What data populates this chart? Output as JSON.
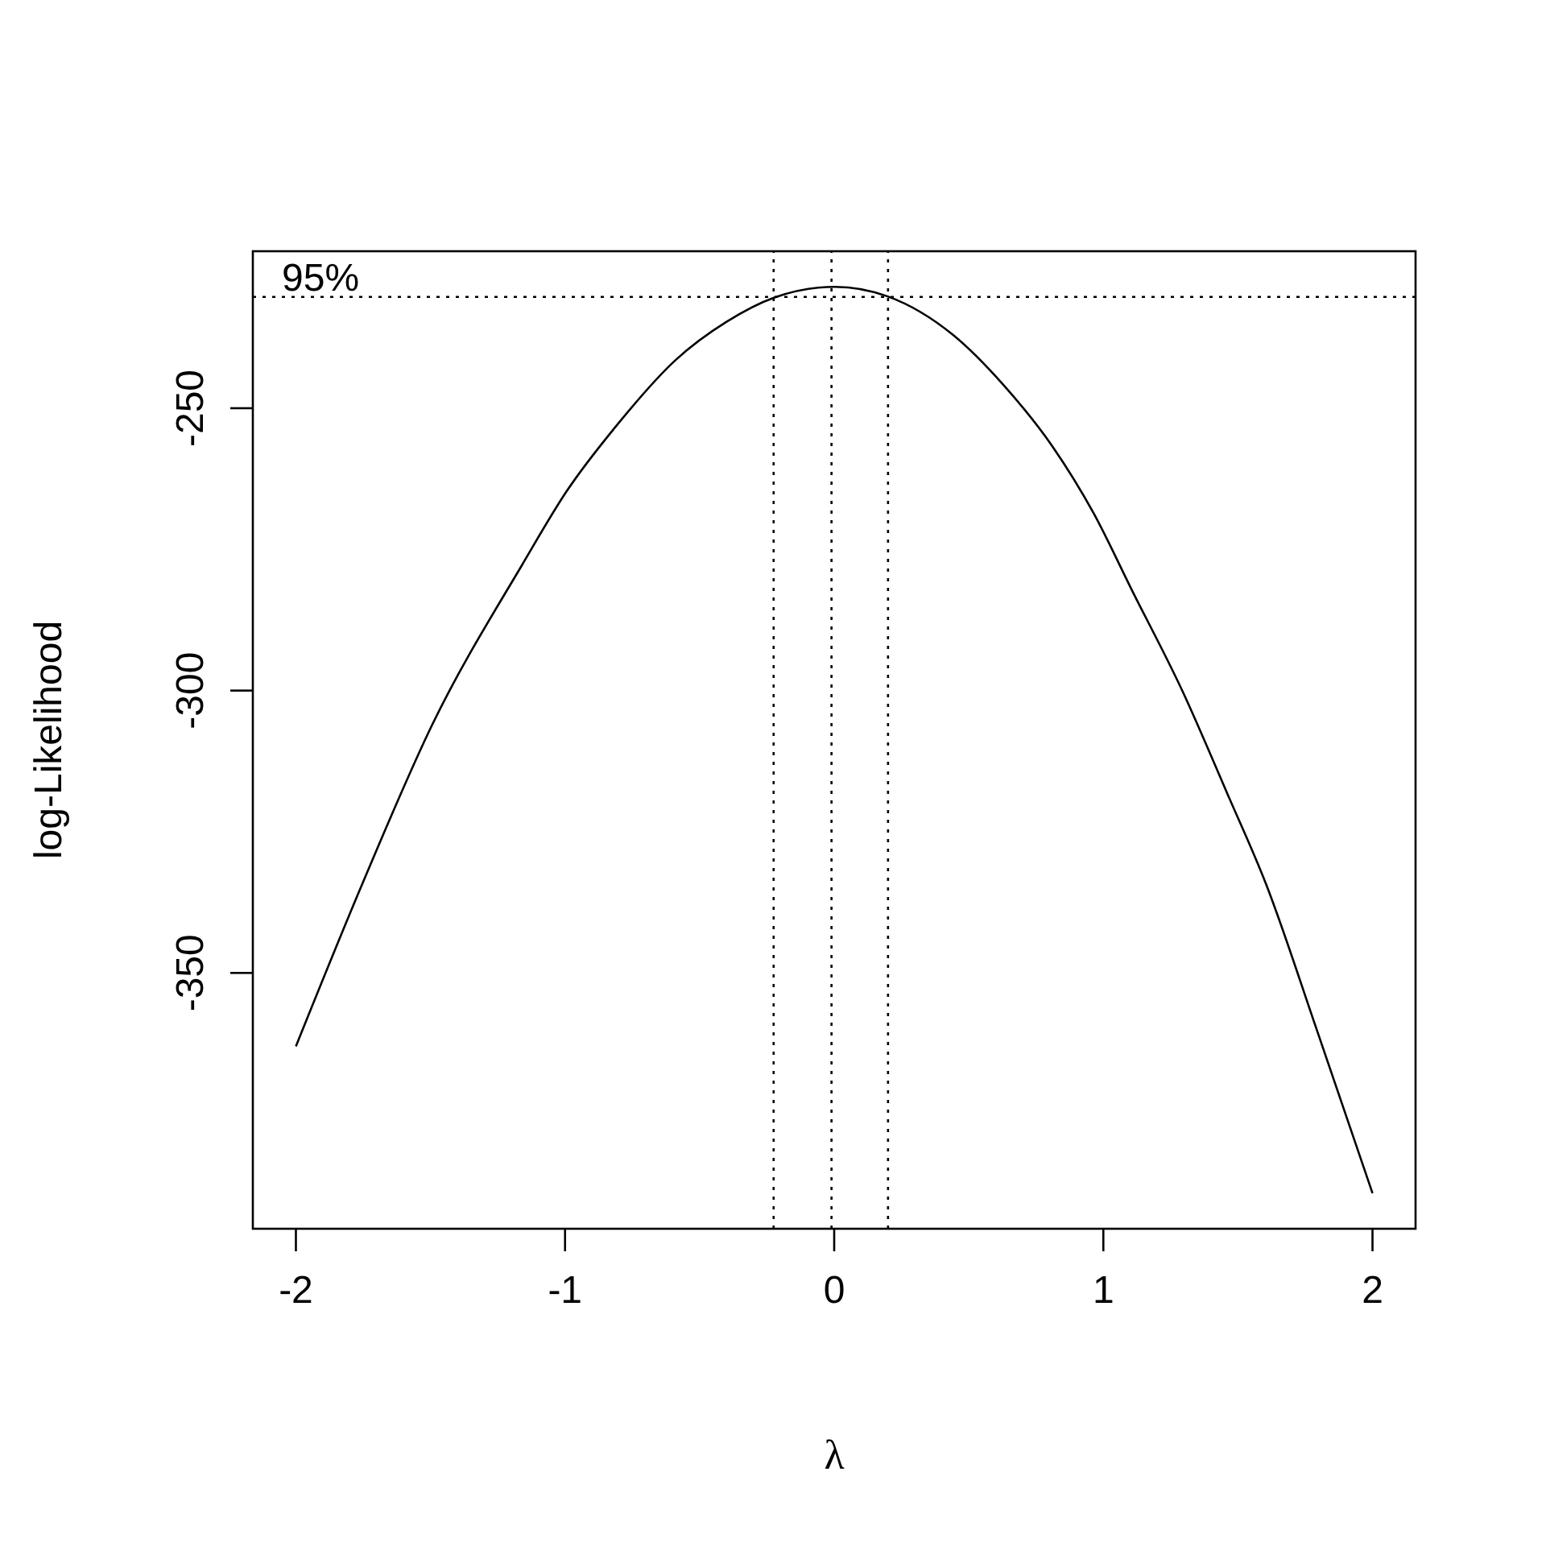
{
  "chart_data": {
    "type": "line",
    "xlabel": "λ",
    "ylabel": "log-Likelihood",
    "x": [
      -2,
      -1.753,
      -1.492,
      -1.159,
      -0.994,
      -0.804,
      -0.59,
      -0.4,
      -0.222,
      0.003,
      0.199,
      0.441,
      0.631,
      0.81,
      0.964,
      1.106,
      1.296,
      1.462,
      1.604,
      1.794,
      2
    ],
    "series": [
      {
        "color": "#000000",
        "values": [
          -363.0,
          -334.2,
          -305.9,
          -277.7,
          -264.7,
          -252.8,
          -241.5,
          -234.7,
          -230.4,
          -228.5,
          -230.2,
          -237.0,
          -246.0,
          -256.7,
          -268.6,
          -282.2,
          -300.3,
          -318.4,
          -334.2,
          -360.2,
          -389.0
        ]
      }
    ],
    "xlim": [
      -2.16,
      2.16
    ],
    "ylim": [
      -395.3,
      -222.2
    ],
    "xticks": [
      -2,
      -1,
      0,
      1,
      2
    ],
    "yticks": [
      -350,
      -300,
      -250
    ],
    "annotations": [
      "95%"
    ],
    "ref_lines": [
      {
        "axis": "y",
        "value": -230.3,
        "line_style": "dotted"
      },
      {
        "axis": "x",
        "value": -0.225,
        "line_style": "dotted"
      },
      {
        "axis": "x",
        "value": -0.01,
        "line_style": "dotted"
      },
      {
        "axis": "x",
        "value": 0.2,
        "line_style": "dotted"
      }
    ]
  }
}
